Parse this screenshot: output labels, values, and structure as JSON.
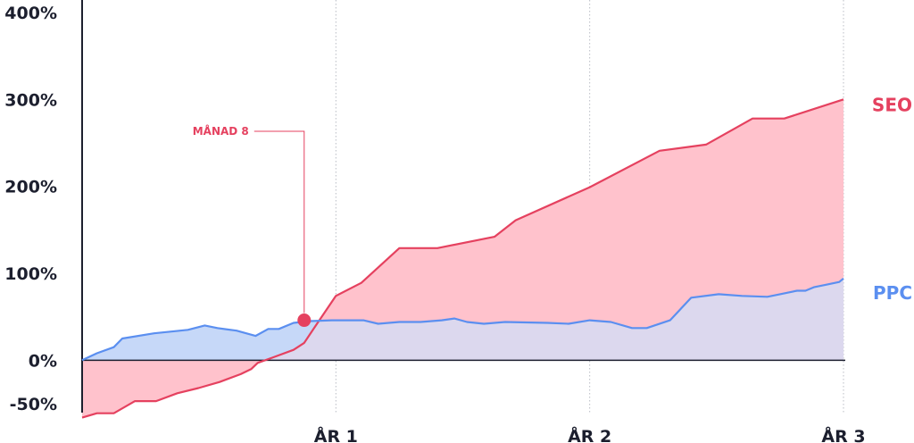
{
  "chart_data": {
    "type": "area",
    "title": "",
    "xlabel": "",
    "ylabel": "",
    "x_unit": "months",
    "xlim": [
      0,
      36
    ],
    "ylim": [
      -50,
      400
    ],
    "y_ticks": [
      {
        "value": 400,
        "label": "400%"
      },
      {
        "value": 300,
        "label": "300%"
      },
      {
        "value": 200,
        "label": "200%"
      },
      {
        "value": 100,
        "label": "100%"
      },
      {
        "value": 0,
        "label": "0%"
      },
      {
        "value": -50,
        "label": "-50%"
      }
    ],
    "x_ticks": [
      {
        "value": 12,
        "label": "ÅR 1"
      },
      {
        "value": 24,
        "label": "ÅR 2"
      },
      {
        "value": 36,
        "label": "ÅR 3"
      }
    ],
    "series": [
      {
        "name": "SEO",
        "color": "#e5415f",
        "fill": "#ffc2cc",
        "points": [
          [
            0,
            -66
          ],
          [
            0.7,
            -61
          ],
          [
            1.5,
            -61
          ],
          [
            2.5,
            -47
          ],
          [
            3.5,
            -47
          ],
          [
            4.5,
            -38
          ],
          [
            5.5,
            -32
          ],
          [
            6.5,
            -25
          ],
          [
            7.5,
            -16
          ],
          [
            8,
            -10
          ],
          [
            8.3,
            -3
          ],
          [
            9,
            3
          ],
          [
            10,
            12
          ],
          [
            10.5,
            20
          ],
          [
            11,
            38
          ],
          [
            12,
            74
          ],
          [
            13.2,
            89
          ],
          [
            15,
            129
          ],
          [
            16.8,
            129
          ],
          [
            19.5,
            142
          ],
          [
            20.5,
            161
          ],
          [
            24,
            199
          ],
          [
            27.3,
            241
          ],
          [
            29.5,
            248
          ],
          [
            31.7,
            278
          ],
          [
            33.2,
            278
          ],
          [
            36,
            300
          ]
        ]
      },
      {
        "name": "PPC",
        "color": "#5b8ff0",
        "fill": "#dcd8ee",
        "points": [
          [
            0,
            0
          ],
          [
            0.7,
            8
          ],
          [
            1.5,
            15
          ],
          [
            1.9,
            25
          ],
          [
            3.4,
            31
          ],
          [
            5,
            35
          ],
          [
            5.8,
            40
          ],
          [
            6.4,
            37
          ],
          [
            7.3,
            34
          ],
          [
            8.2,
            28
          ],
          [
            8.8,
            36
          ],
          [
            9.3,
            36
          ],
          [
            10,
            43
          ],
          [
            10.8,
            45
          ],
          [
            11.8,
            46
          ],
          [
            12.6,
            46
          ],
          [
            13.3,
            46
          ],
          [
            14,
            42
          ],
          [
            15,
            44
          ],
          [
            16,
            44
          ],
          [
            17,
            46
          ],
          [
            17.6,
            48
          ],
          [
            18.2,
            44
          ],
          [
            19,
            42
          ],
          [
            20,
            44
          ],
          [
            22,
            43
          ],
          [
            23,
            42
          ],
          [
            24,
            46
          ],
          [
            25,
            44
          ],
          [
            26,
            37
          ],
          [
            26.7,
            37
          ],
          [
            27.8,
            46
          ],
          [
            28.8,
            72
          ],
          [
            30.1,
            76
          ],
          [
            31.2,
            74
          ],
          [
            32.4,
            73
          ],
          [
            33,
            76
          ],
          [
            33.8,
            80
          ],
          [
            34.2,
            80
          ],
          [
            34.6,
            84
          ],
          [
            35.2,
            87
          ],
          [
            35.8,
            90
          ],
          [
            36,
            94
          ]
        ]
      }
    ],
    "annotation": {
      "label": "MÅNAD 8",
      "x": 10.5,
      "y": 46,
      "color": "#e5415f"
    },
    "grid": "vertical-dotted",
    "legend": "right"
  }
}
